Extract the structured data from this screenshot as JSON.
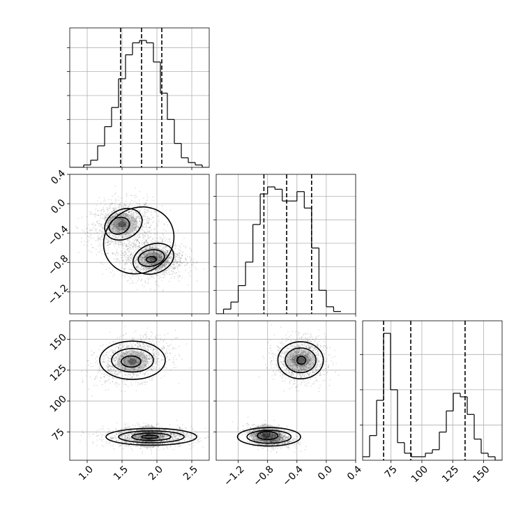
{
  "chart_data": {
    "type": "corner",
    "grid": true,
    "n_params": 3,
    "params": [
      {
        "range": [
          0.75,
          2.75
        ],
        "ticks": [
          1.0,
          1.5,
          2.0,
          2.5
        ],
        "tick_labels": [
          "1.0",
          "1.5",
          "2.0",
          "2.5"
        ],
        "quantiles": [
          1.48,
          1.78,
          2.07
        ],
        "histogram": {
          "edges": [
            0.75,
            0.85,
            0.95,
            1.05,
            1.15,
            1.25,
            1.35,
            1.45,
            1.55,
            1.65,
            1.75,
            1.85,
            1.95,
            2.05,
            2.15,
            2.25,
            2.35,
            2.45,
            2.55,
            2.65,
            2.75
          ],
          "counts": [
            0,
            0,
            1,
            3,
            9,
            17,
            25,
            37,
            47,
            52,
            53,
            52,
            44,
            31,
            20,
            10,
            4,
            2,
            1,
            0
          ]
        }
      },
      {
        "range": [
          -1.5,
          0.4
        ],
        "ticks": [
          -1.2,
          -0.8,
          -0.4,
          0.0,
          0.4
        ],
        "tick_labels": [
          "−1.2",
          "−0.8",
          "−0.4",
          "0.0",
          "0.4"
        ],
        "quantiles": [
          -0.85,
          -0.54,
          -0.2
        ],
        "histogram": {
          "edges": [
            -1.5,
            -1.4,
            -1.3,
            -1.2,
            -1.1,
            -1.0,
            -0.9,
            -0.8,
            -0.7,
            -0.6,
            -0.5,
            -0.4,
            -0.3,
            -0.2,
            -0.1,
            0.0,
            0.1,
            0.2
          ],
          "counts": [
            0,
            2,
            5,
            12,
            22,
            38,
            51,
            54,
            53,
            48,
            48,
            52,
            45,
            28,
            10,
            3,
            1
          ]
        }
      },
      {
        "range": [
          52,
          165
        ],
        "ticks": [
          75,
          100,
          125,
          150
        ],
        "tick_labels": [
          "75",
          "100",
          "125",
          "150"
        ],
        "quantiles": [
          69,
          91,
          135
        ],
        "histogram": {
          "edges": [
            52,
            57.65,
            63.3,
            68.95,
            74.6,
            80.25,
            85.9,
            91.55,
            97.2,
            102.85,
            108.5,
            114.15,
            119.8,
            125.45,
            131.1,
            136.75,
            142.4,
            148.05,
            153.7,
            159.35,
            165
          ],
          "counts": [
            1,
            7,
            17,
            36,
            20,
            5,
            2,
            1,
            1,
            2,
            3,
            8,
            14,
            19,
            18,
            13,
            6,
            2,
            1,
            0
          ]
        }
      }
    ],
    "panels_2d": [
      {
        "x_param": 0,
        "y_param": 1,
        "samples": [
          {
            "mean": [
              1.5,
              -0.3
            ],
            "sd": [
              0.22,
              0.17
            ],
            "rho": 0.15,
            "n": 1400
          },
          {
            "mean": [
              1.95,
              -0.75
            ],
            "sd": [
              0.22,
              0.14
            ],
            "rho": 0.0,
            "n": 1400
          }
        ],
        "density_peaks": [
          [
            1.5,
            -0.28
          ],
          [
            1.95,
            -0.75
          ]
        ],
        "contours": [
          {
            "level": "outer",
            "center": [
              1.74,
              -0.5
            ],
            "rx": 0.52,
            "ry": 0.44,
            "tilt": -0.63
          },
          {
            "level": "mid",
            "center": [
              1.52,
              -0.28
            ],
            "rx": 0.28,
            "ry": 0.2,
            "tilt": -0.5
          },
          {
            "level": "mid",
            "center": [
              1.95,
              -0.75
            ],
            "rx": 0.3,
            "ry": 0.2,
            "tilt": -0.35
          },
          {
            "level": "inner",
            "center": [
              1.46,
              -0.3
            ],
            "rx": 0.15,
            "ry": 0.11,
            "tilt": -0.4
          },
          {
            "level": "inner",
            "center": [
              1.92,
              -0.74
            ],
            "rx": 0.19,
            "ry": 0.11,
            "tilt": -0.2
          },
          {
            "level": "core",
            "center": [
              1.92,
              -0.76
            ],
            "rx": 0.07,
            "ry": 0.04,
            "tilt": 0
          }
        ]
      },
      {
        "x_param": 0,
        "y_param": 2,
        "samples": [
          {
            "mean": [
              1.65,
              133
            ],
            "sd": [
              0.26,
              9
            ],
            "rho": 0.3,
            "n": 1300
          },
          {
            "mean": [
              1.9,
              71
            ],
            "sd": [
              0.32,
              4
            ],
            "rho": 0.0,
            "n": 1500
          }
        ],
        "density_peaks": [
          [
            1.65,
            132
          ],
          [
            1.88,
            71
          ]
        ],
        "contours": [
          {
            "level": "outer",
            "center": [
              1.65,
              133
            ],
            "rx": 0.47,
            "ry": 15.5,
            "tilt": 0
          },
          {
            "level": "mid",
            "center": [
              1.65,
              133
            ],
            "rx": 0.3,
            "ry": 9.5,
            "tilt": 0
          },
          {
            "level": "inner",
            "center": [
              1.63,
              132
            ],
            "rx": 0.14,
            "ry": 4.5,
            "tilt": 0
          },
          {
            "level": "outer",
            "center": [
              1.92,
              71
            ],
            "rx": 0.65,
            "ry": 6.8,
            "tilt": 0
          },
          {
            "level": "mid",
            "center": [
              1.92,
              71
            ],
            "rx": 0.47,
            "ry": 4.8,
            "tilt": 0
          },
          {
            "level": "inner",
            "center": [
              1.92,
              71
            ],
            "rx": 0.28,
            "ry": 3.0,
            "tilt": 0
          },
          {
            "level": "core",
            "center": [
              1.9,
              71
            ],
            "rx": 0.12,
            "ry": 1.3,
            "tilt": 0
          }
        ]
      },
      {
        "x_param": 1,
        "y_param": 2,
        "samples": [
          {
            "mean": [
              -0.35,
              133
            ],
            "sd": [
              0.17,
              9
            ],
            "rho": 0.0,
            "n": 1300
          },
          {
            "mean": [
              -0.77,
              71
            ],
            "sd": [
              0.15,
              4
            ],
            "rho": -0.3,
            "n": 1500
          }
        ],
        "density_peaks": [
          [
            -0.35,
            133
          ],
          [
            -0.82,
            72
          ]
        ],
        "contours": [
          {
            "level": "outer",
            "center": [
              -0.35,
              133
            ],
            "rx": 0.31,
            "ry": 15,
            "tilt": 0
          },
          {
            "level": "mid",
            "center": [
              -0.35,
              133
            ],
            "rx": 0.21,
            "ry": 10,
            "tilt": 0
          },
          {
            "level": "inner",
            "center": [
              -0.34,
              133
            ],
            "rx": 0.06,
            "ry": 3.2,
            "tilt": 0
          },
          {
            "level": "outer",
            "center": [
              -0.78,
              71
            ],
            "rx": 0.43,
            "ry": 7.5,
            "tilt": 0
          },
          {
            "level": "mid",
            "center": [
              -0.78,
              71
            ],
            "rx": 0.3,
            "ry": 5.2,
            "tilt": 0
          },
          {
            "level": "inner",
            "center": [
              -0.8,
              72
            ],
            "rx": 0.14,
            "ry": 3.2,
            "tilt": 0
          }
        ]
      }
    ]
  }
}
